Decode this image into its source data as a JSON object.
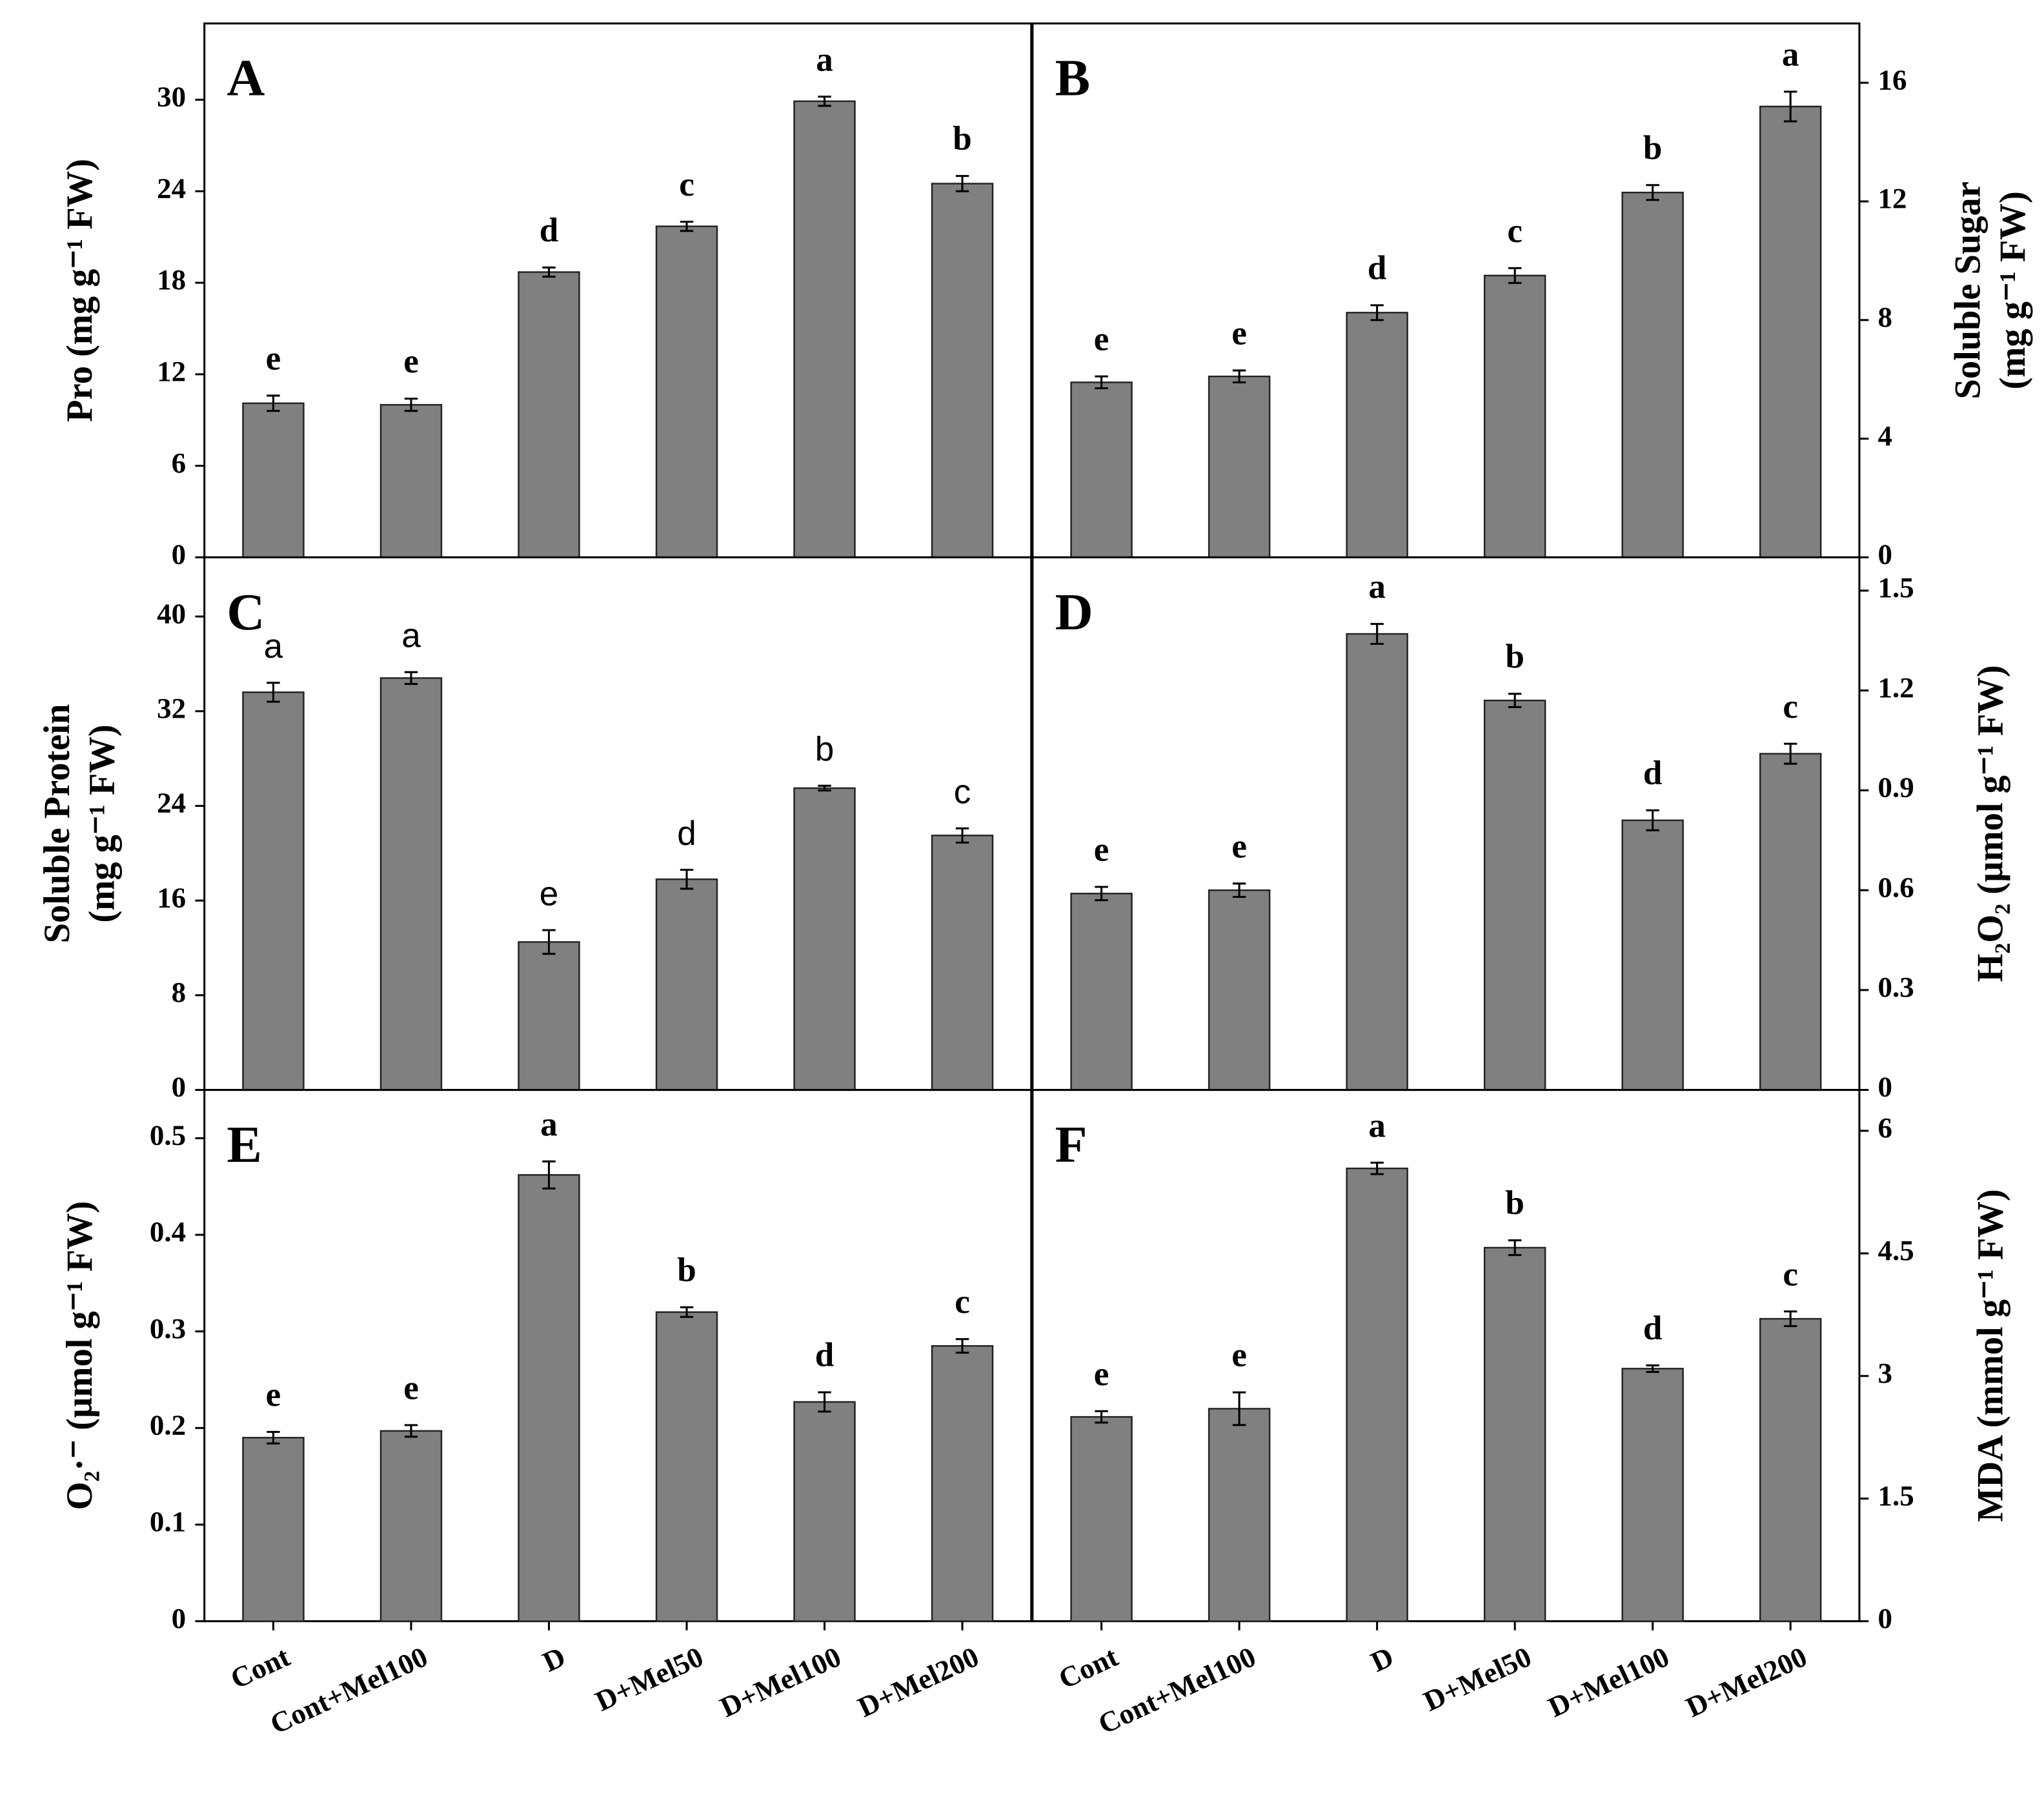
{
  "chart_data": [
    {
      "type": "bar",
      "title": "A",
      "ylabel": "Pro (mg g⁻¹ FW)",
      "color": "#808080",
      "values": [
        10.1,
        10.0,
        18.7,
        21.7,
        29.9,
        24.5
      ],
      "errors": [
        0.5,
        0.4,
        0.3,
        0.3,
        0.3,
        0.5
      ],
      "annotations": [
        "e",
        "e",
        "d",
        "c",
        "a",
        "b"
      ],
      "ylim": [
        0,
        35
      ],
      "yticks": [
        0,
        6,
        12,
        18,
        24,
        30
      ]
    },
    {
      "type": "bar",
      "title": "B",
      "ylabel": [
        "Soluble Sugar",
        "(mg g⁻¹ FW)"
      ],
      "color": "#808080",
      "values": [
        5.9,
        6.1,
        8.25,
        9.5,
        12.3,
        15.2
      ],
      "errors": [
        0.2,
        0.2,
        0.25,
        0.25,
        0.25,
        0.5
      ],
      "annotations": [
        "e",
        "e",
        "d",
        "c",
        "b",
        "a"
      ],
      "ylim": [
        0,
        18
      ],
      "yticks": [
        0,
        4,
        8,
        12,
        16
      ]
    },
    {
      "type": "bar",
      "title": "C",
      "ylabel": [
        "Soluble Protein",
        "(mg g⁻¹ FW)"
      ],
      "color": "#808080",
      "values": [
        33.6,
        34.8,
        12.5,
        17.8,
        25.5,
        21.5
      ],
      "errors": [
        0.8,
        0.5,
        1.0,
        0.8,
        0.2,
        0.6
      ],
      "annotations": [
        "a",
        "a",
        "e",
        "d",
        "b",
        "c"
      ],
      "ylim": [
        0,
        45
      ],
      "yticks": [
        0,
        8,
        16,
        24,
        32,
        40
      ]
    },
    {
      "type": "bar",
      "title": "D",
      "ylabel": "H₂O₂ (µmol g⁻¹ FW)",
      "color": "#808080",
      "values": [
        0.59,
        0.6,
        1.37,
        1.17,
        0.81,
        1.01
      ],
      "errors": [
        0.02,
        0.02,
        0.03,
        0.02,
        0.03,
        0.03
      ],
      "annotations": [
        "e",
        "e",
        "a",
        "b",
        "d",
        "c"
      ],
      "ylim": [
        0,
        1.6
      ],
      "yticks": [
        0,
        0.3,
        0.6,
        0.9,
        1.2,
        1.5
      ]
    },
    {
      "type": "bar",
      "title": "E",
      "ylabel": "O₂·⁻ (µmol g⁻¹ FW)",
      "color": "#808080",
      "categories": [
        "Cont",
        "Cont+Mel100",
        "D",
        "D+Mel50",
        "D+Mel100",
        "D+Mel200"
      ],
      "values": [
        0.19,
        0.197,
        0.462,
        0.32,
        0.227,
        0.285
      ],
      "errors": [
        0.006,
        0.006,
        0.014,
        0.005,
        0.01,
        0.007
      ],
      "annotations": [
        "e",
        "e",
        "a",
        "b",
        "d",
        "c"
      ],
      "ylim": [
        0,
        0.55
      ],
      "yticks": [
        0,
        0.1,
        0.2,
        0.3,
        0.4,
        0.5
      ]
    },
    {
      "type": "bar",
      "title": "F",
      "ylabel": "MDA (mmol g⁻¹ FW)",
      "color": "#808080",
      "categories": [
        "Cont",
        "Cont+Mel100",
        "D",
        "D+Mel50",
        "D+Mel100",
        "D+Mel200"
      ],
      "values": [
        2.5,
        2.6,
        5.54,
        4.57,
        3.09,
        3.7
      ],
      "errors": [
        0.07,
        0.2,
        0.07,
        0.09,
        0.04,
        0.09
      ],
      "annotations": [
        "e",
        "e",
        "a",
        "b",
        "d",
        "c"
      ],
      "ylim": [
        0,
        6.5
      ],
      "yticks": [
        0,
        1.5,
        3,
        4.5,
        6
      ]
    }
  ]
}
